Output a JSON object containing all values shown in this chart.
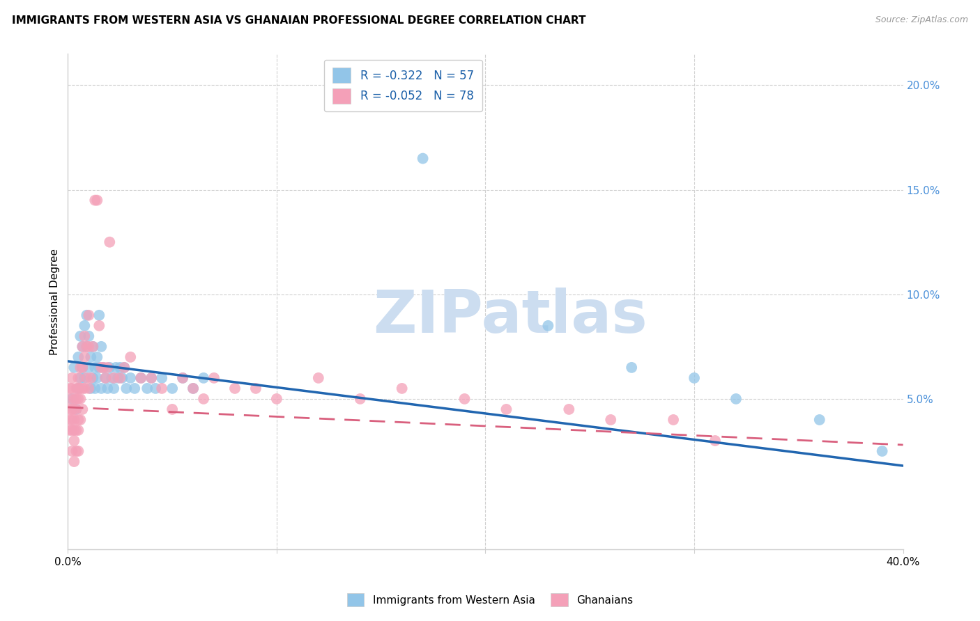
{
  "title": "IMMIGRANTS FROM WESTERN ASIA VS GHANAIAN PROFESSIONAL DEGREE CORRELATION CHART",
  "source": "Source: ZipAtlas.com",
  "ylabel": "Professional Degree",
  "xlim": [
    0.0,
    0.4
  ],
  "ylim": [
    -0.022,
    0.215
  ],
  "blue_color": "#92c5e8",
  "pink_color": "#f4a0b8",
  "blue_line_color": "#2166b0",
  "pink_line_color": "#d9607e",
  "right_tick_color": "#4a90d9",
  "grid_color": "#d0d0d0",
  "blue_scatter_x": [
    0.002,
    0.003,
    0.004,
    0.005,
    0.005,
    0.006,
    0.006,
    0.007,
    0.007,
    0.008,
    0.008,
    0.009,
    0.009,
    0.01,
    0.01,
    0.011,
    0.011,
    0.012,
    0.012,
    0.013,
    0.013,
    0.014,
    0.014,
    0.015,
    0.015,
    0.016,
    0.016,
    0.017,
    0.018,
    0.019,
    0.02,
    0.021,
    0.022,
    0.023,
    0.024,
    0.025,
    0.026,
    0.027,
    0.028,
    0.03,
    0.032,
    0.035,
    0.038,
    0.04,
    0.042,
    0.045,
    0.05,
    0.055,
    0.06,
    0.065,
    0.17,
    0.23,
    0.27,
    0.3,
    0.32,
    0.36,
    0.39
  ],
  "blue_scatter_y": [
    0.05,
    0.065,
    0.045,
    0.07,
    0.055,
    0.08,
    0.06,
    0.075,
    0.065,
    0.085,
    0.06,
    0.075,
    0.09,
    0.065,
    0.08,
    0.055,
    0.07,
    0.06,
    0.075,
    0.065,
    0.055,
    0.07,
    0.06,
    0.065,
    0.09,
    0.075,
    0.055,
    0.065,
    0.06,
    0.055,
    0.065,
    0.06,
    0.055,
    0.065,
    0.06,
    0.065,
    0.06,
    0.065,
    0.055,
    0.06,
    0.055,
    0.06,
    0.055,
    0.06,
    0.055,
    0.06,
    0.055,
    0.06,
    0.055,
    0.06,
    0.165,
    0.085,
    0.065,
    0.06,
    0.05,
    0.04,
    0.025
  ],
  "pink_scatter_x": [
    0.001,
    0.001,
    0.001,
    0.001,
    0.001,
    0.002,
    0.002,
    0.002,
    0.002,
    0.002,
    0.002,
    0.003,
    0.003,
    0.003,
    0.003,
    0.003,
    0.003,
    0.004,
    0.004,
    0.004,
    0.004,
    0.004,
    0.005,
    0.005,
    0.005,
    0.005,
    0.005,
    0.005,
    0.006,
    0.006,
    0.006,
    0.006,
    0.007,
    0.007,
    0.007,
    0.007,
    0.008,
    0.008,
    0.008,
    0.009,
    0.009,
    0.01,
    0.01,
    0.01,
    0.011,
    0.012,
    0.013,
    0.014,
    0.015,
    0.016,
    0.017,
    0.018,
    0.019,
    0.02,
    0.022,
    0.025,
    0.027,
    0.03,
    0.035,
    0.04,
    0.045,
    0.05,
    0.055,
    0.06,
    0.065,
    0.07,
    0.08,
    0.09,
    0.1,
    0.12,
    0.14,
    0.16,
    0.19,
    0.21,
    0.24,
    0.26,
    0.29,
    0.31
  ],
  "pink_scatter_y": [
    0.055,
    0.05,
    0.045,
    0.04,
    0.035,
    0.06,
    0.055,
    0.045,
    0.04,
    0.035,
    0.025,
    0.05,
    0.045,
    0.04,
    0.035,
    0.03,
    0.02,
    0.055,
    0.05,
    0.045,
    0.035,
    0.025,
    0.06,
    0.055,
    0.05,
    0.04,
    0.035,
    0.025,
    0.065,
    0.055,
    0.05,
    0.04,
    0.075,
    0.065,
    0.055,
    0.045,
    0.08,
    0.07,
    0.055,
    0.075,
    0.06,
    0.09,
    0.075,
    0.055,
    0.06,
    0.075,
    0.145,
    0.145,
    0.085,
    0.065,
    0.065,
    0.06,
    0.065,
    0.125,
    0.06,
    0.06,
    0.065,
    0.07,
    0.06,
    0.06,
    0.055,
    0.045,
    0.06,
    0.055,
    0.05,
    0.06,
    0.055,
    0.055,
    0.05,
    0.06,
    0.05,
    0.055,
    0.05,
    0.045,
    0.045,
    0.04,
    0.04,
    0.03
  ],
  "blue_trend_x0": 0.0,
  "blue_trend_x1": 0.4,
  "blue_trend_y0": 0.068,
  "blue_trend_y1": 0.018,
  "pink_trend_x0": 0.0,
  "pink_trend_x1": 0.4,
  "pink_trend_y0": 0.046,
  "pink_trend_y1": 0.028,
  "yticks": [
    0.05,
    0.1,
    0.15,
    0.2
  ],
  "ytick_labels": [
    "5.0%",
    "10.0%",
    "15.0%",
    "20.0%"
  ],
  "xticks": [
    0.0,
    0.1,
    0.2,
    0.3,
    0.4
  ],
  "xtick_labels": [
    "0.0%",
    "",
    "",
    "",
    "40.0%"
  ],
  "legend1_label": "R = -0.322   N = 57",
  "legend2_label": "R = -0.052   N = 78",
  "bottom_label1": "Immigrants from Western Asia",
  "bottom_label2": "Ghanaians",
  "watermark_text": "ZIPatlas",
  "watermark_color": "#ccddf0"
}
